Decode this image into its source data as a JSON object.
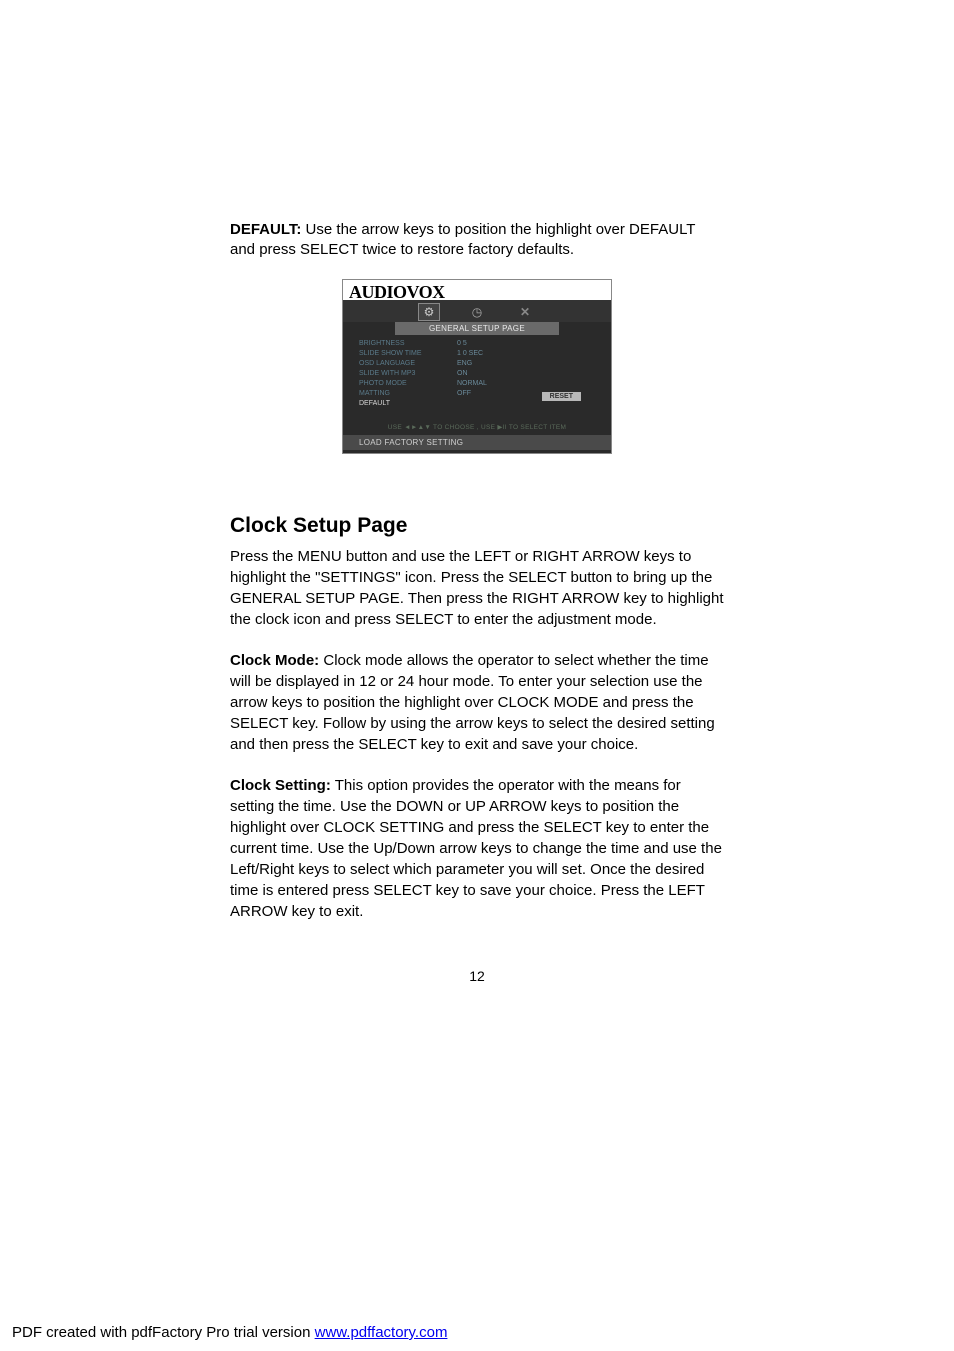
{
  "default_section": {
    "label": "DEFAULT:",
    "text": " Use the arrow keys to position the highlight over DEFAULT and press SELECT twice to restore factory defaults."
  },
  "screenshot": {
    "brand": "AUDIOVOX",
    "tab": "GENERAL SETUP PAGE",
    "menu": [
      {
        "label": "BRIGHTNESS",
        "value": "0 5"
      },
      {
        "label": "SLIDE SHOW TIME",
        "value": "1 0 SEC"
      },
      {
        "label": "OSD LANGUAGE",
        "value": "ENG"
      },
      {
        "label": "SLIDE WITH MP3",
        "value": "ON"
      },
      {
        "label": "PHOTO MODE",
        "value": "NORMAL"
      },
      {
        "label": "MATTING",
        "value": "OFF"
      },
      {
        "label": "DEFAULT",
        "value": ""
      }
    ],
    "reset": "RESET",
    "hint": "USE ◄►▲▼ TO CHOOSE , USE ▶II TO SELECT ITEM",
    "footer": "LOAD FACTORY SETTING"
  },
  "clock_heading": "Clock Setup Page",
  "clock_intro": "Press the MENU button and use the LEFT or RIGHT ARROW keys to highlight the \"SETTINGS\" icon. Press the SELECT button to bring up the GENERAL SETUP PAGE. Then press the RIGHT ARROW key to highlight the clock icon and press SELECT to enter the adjustment mode.",
  "clock_mode": {
    "label": "Clock Mode:",
    "text": " Clock mode allows the operator to select whether the time will be displayed in 12 or 24 hour mode. To enter your selection use the arrow keys to position the highlight over CLOCK MODE and press the SELECT key. Follow by using the arrow keys to select the desired setting and then press the SELECT key to exit and save your choice."
  },
  "clock_setting": {
    "label": "Clock Setting:",
    "text": " This option provides the operator with the means for setting the time. Use the DOWN or UP ARROW keys to position the highlight over CLOCK SETTING and press the SELECT key to enter the current time. Use the Up/Down arrow keys to change the time and use the Left/Right keys to select which parameter you will set. Once the desired time is entered press SELECT key to save your choice. Press the LEFT ARROW key to exit."
  },
  "page_number": "12",
  "footer": {
    "prefix": "PDF created with pdfFactory Pro trial version ",
    "link_text": "www.pdffactory.com"
  }
}
